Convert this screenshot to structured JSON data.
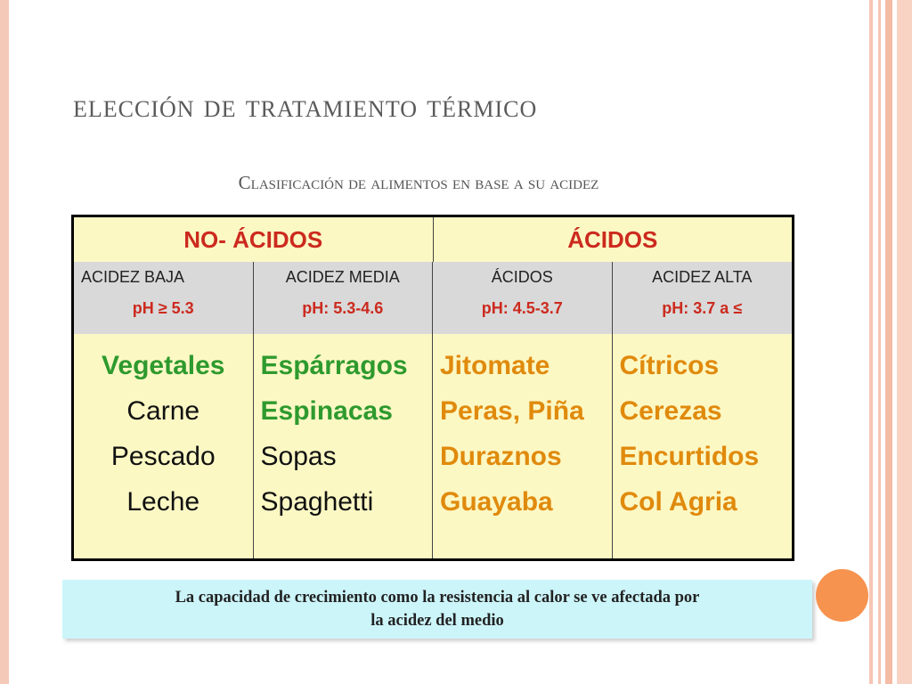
{
  "slide": {
    "title": "elección de tratamiento térmico",
    "subtitle": "Clasificación de alimentos en base a su acidez"
  },
  "table": {
    "groups": [
      "NO- ÁCIDOS",
      "ÁCIDOS"
    ],
    "columns": [
      {
        "name": "ACIDEZ BAJA",
        "ph": "pH ≥ 5.3"
      },
      {
        "name": "ACIDEZ MEDIA",
        "ph": "pH: 5.3-4.6"
      },
      {
        "name": "ÁCIDOS",
        "ph": "pH: 4.5-3.7"
      },
      {
        "name": "ACIDEZ ALTA",
        "ph": "pH: 3.7 a ≤"
      }
    ],
    "foods": [
      [
        "Vegetales",
        "Carne",
        "Pescado",
        "Leche"
      ],
      [
        "Espárragos",
        "Espinacas",
        "Sopas",
        "Spaghetti"
      ],
      [
        "Jitomate",
        "Peras, Piña",
        "Duraznos",
        "Guayaba"
      ],
      [
        "Cítricos",
        "Cerezas",
        "Encurtidos",
        "Col Agria"
      ]
    ],
    "colors": {
      "header_red": "#cc2a1e",
      "green": "#2e9a2e",
      "orange": "#e08a0c",
      "cell_bg": "#fcf8c4",
      "subheader_bg": "#d9d9d9"
    }
  },
  "note": {
    "line1": "La capacidad de crecimiento como la resistencia al calor se ve afectada por",
    "line2": "la acidez del medio"
  }
}
